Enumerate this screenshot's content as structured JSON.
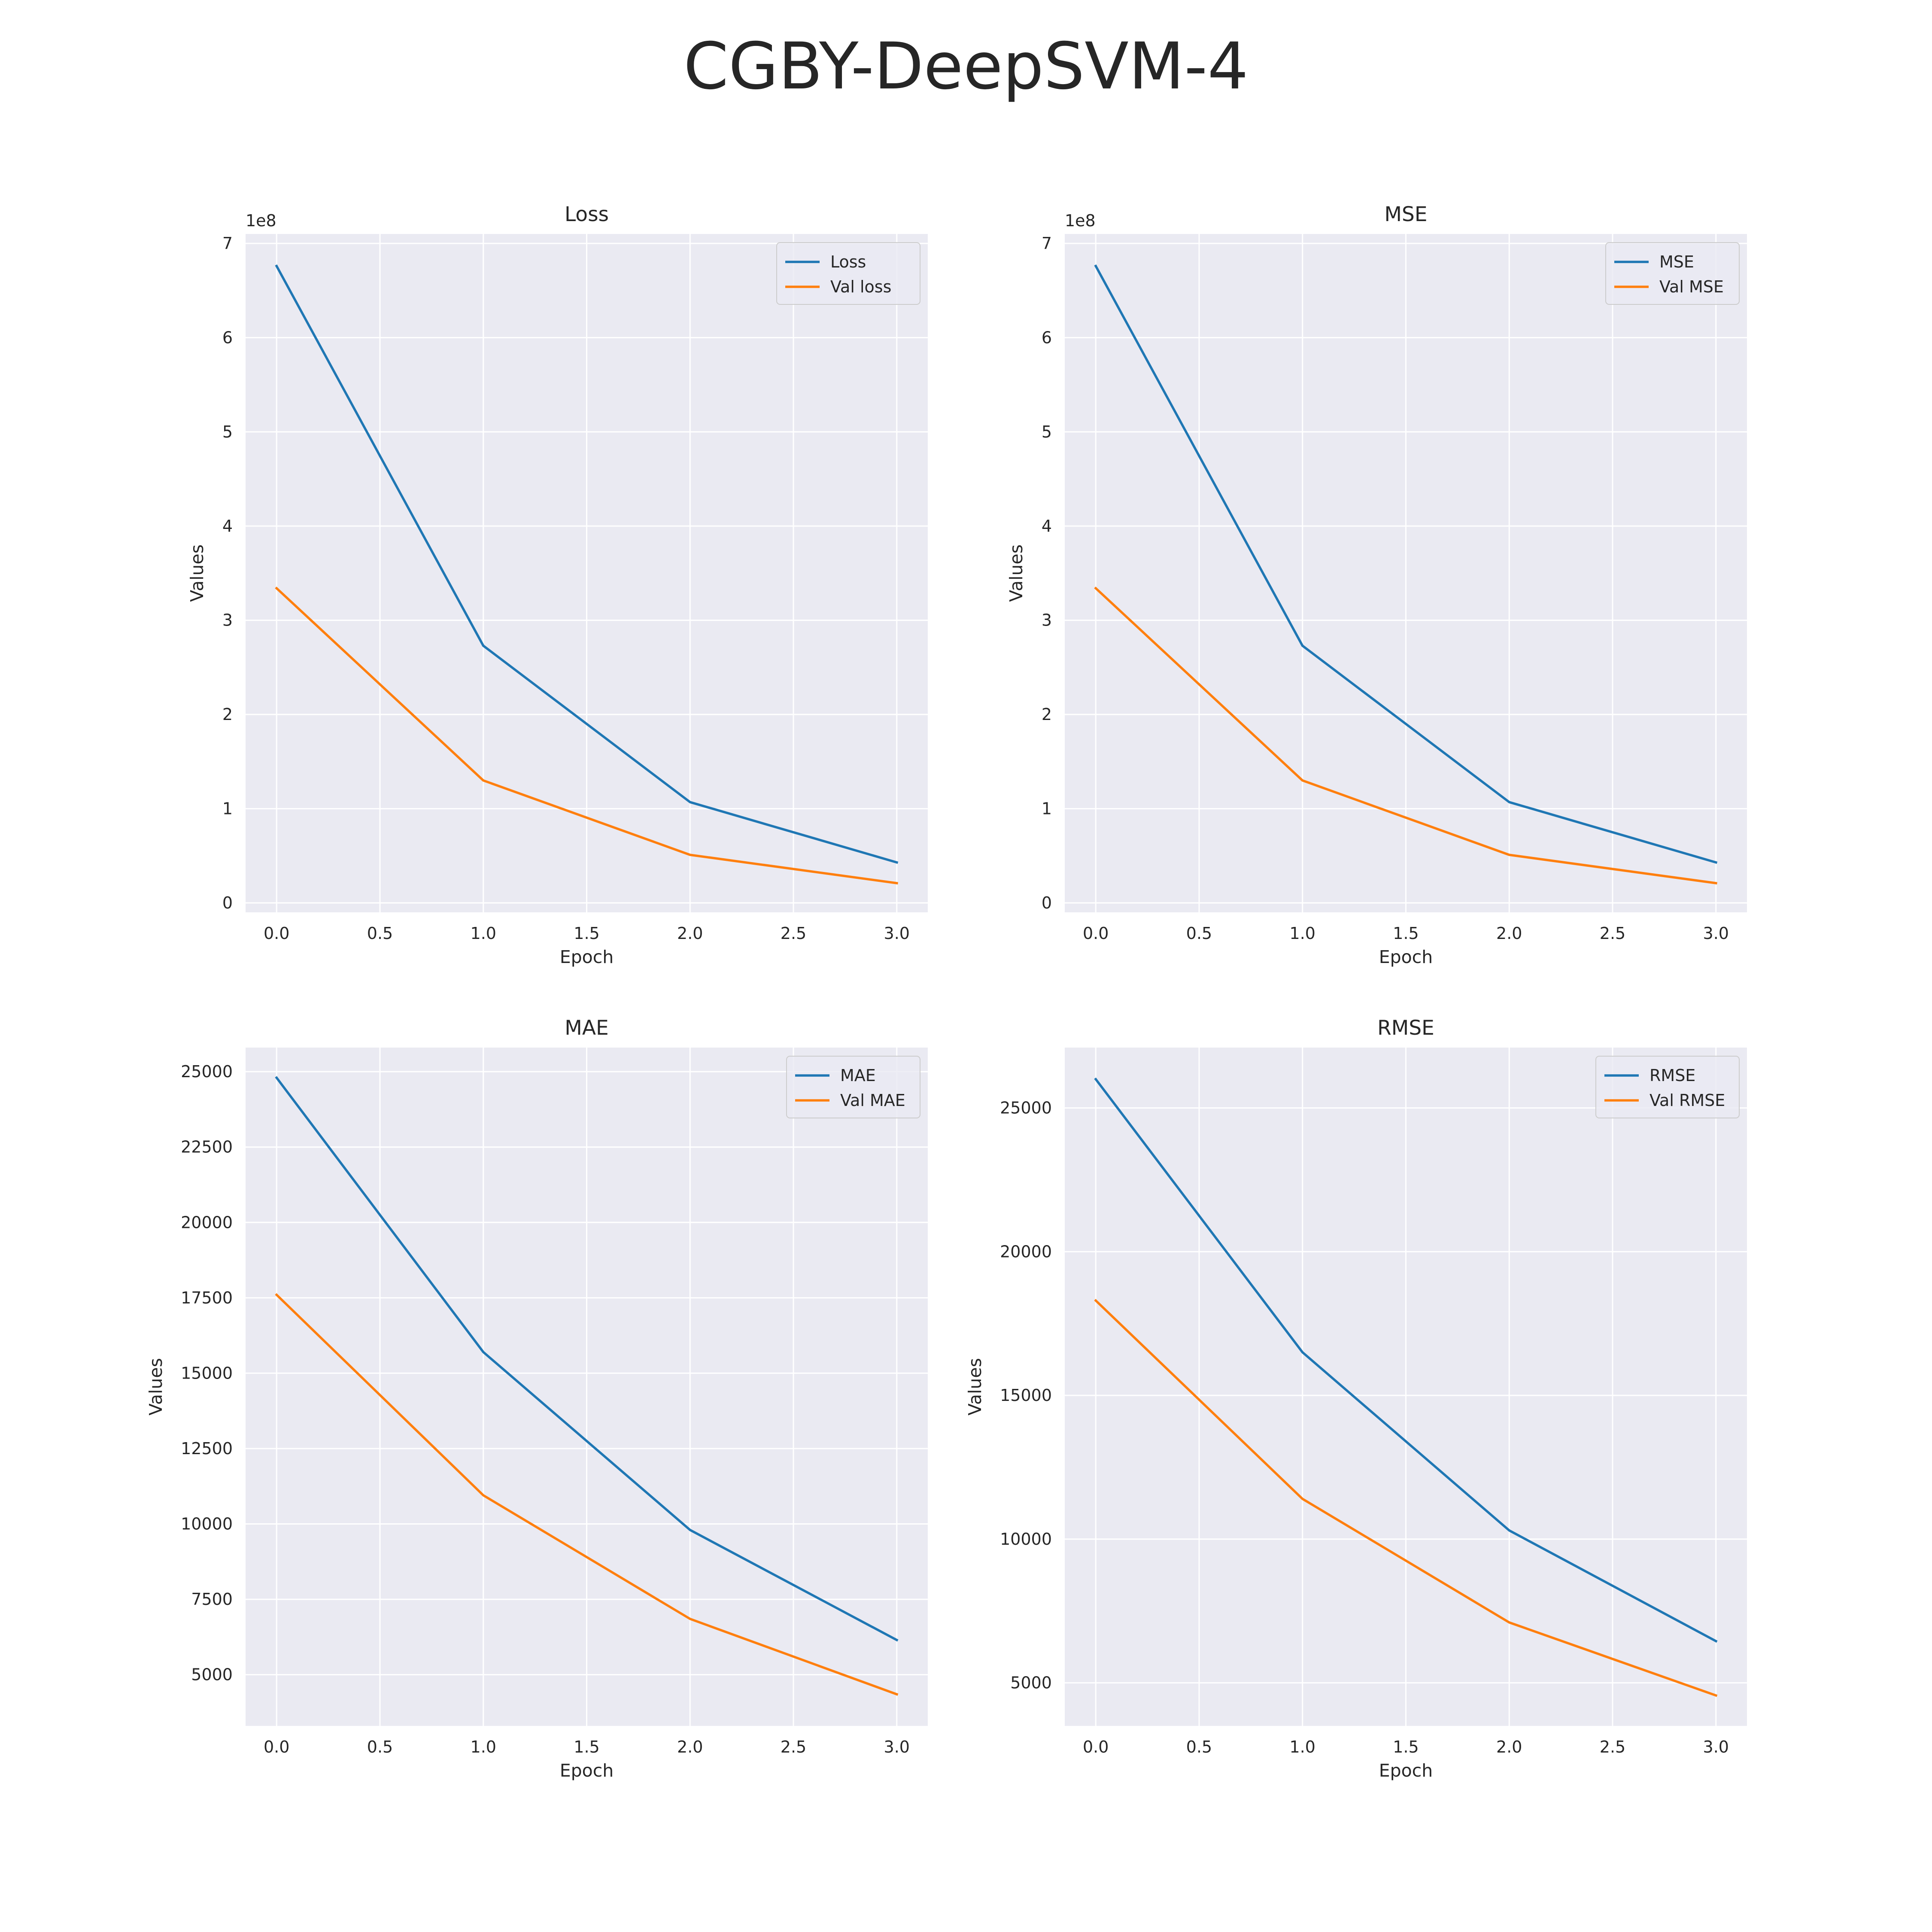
{
  "suptitle": "CGBY-DeepSVM-4",
  "colors": {
    "train": "#1f77b4",
    "val": "#ff7f0e",
    "panel_bg": "#eaeaf2",
    "grid": "#ffffff"
  },
  "chart_data": [
    {
      "type": "line",
      "title": "Loss",
      "xlabel": "Epoch",
      "ylabel": "Values",
      "offset_label": "1e8",
      "x": [
        0,
        1,
        2,
        3
      ],
      "xlim": [
        -0.15,
        3.15
      ],
      "ylim": [
        -0.1,
        7.1
      ],
      "xticks": [
        0,
        0.5,
        1,
        1.5,
        2,
        2.5,
        3
      ],
      "xtick_labels": [
        "0.0",
        "0.5",
        "1.0",
        "1.5",
        "2.0",
        "2.5",
        "3.0"
      ],
      "yticks": [
        0,
        1,
        2,
        3,
        4,
        5,
        6,
        7
      ],
      "ytick_labels": [
        "0",
        "1",
        "2",
        "3",
        "4",
        "5",
        "6",
        "7"
      ],
      "legend": "top-right",
      "grid": true,
      "series": [
        {
          "name": "Loss",
          "color": "#1f77b4",
          "values": [
            6.76,
            2.73,
            1.07,
            0.43
          ]
        },
        {
          "name": "Val loss",
          "color": "#ff7f0e",
          "values": [
            3.34,
            1.3,
            0.51,
            0.21
          ]
        }
      ]
    },
    {
      "type": "line",
      "title": "MSE",
      "xlabel": "Epoch",
      "ylabel": "Values",
      "offset_label": "1e8",
      "x": [
        0,
        1,
        2,
        3
      ],
      "xlim": [
        -0.15,
        3.15
      ],
      "ylim": [
        -0.1,
        7.1
      ],
      "xticks": [
        0,
        0.5,
        1,
        1.5,
        2,
        2.5,
        3
      ],
      "xtick_labels": [
        "0.0",
        "0.5",
        "1.0",
        "1.5",
        "2.0",
        "2.5",
        "3.0"
      ],
      "yticks": [
        0,
        1,
        2,
        3,
        4,
        5,
        6,
        7
      ],
      "ytick_labels": [
        "0",
        "1",
        "2",
        "3",
        "4",
        "5",
        "6",
        "7"
      ],
      "legend": "top-right",
      "grid": true,
      "series": [
        {
          "name": "MSE",
          "color": "#1f77b4",
          "values": [
            6.76,
            2.73,
            1.07,
            0.43
          ]
        },
        {
          "name": "Val MSE",
          "color": "#ff7f0e",
          "values": [
            3.34,
            1.3,
            0.51,
            0.21
          ]
        }
      ]
    },
    {
      "type": "line",
      "title": "MAE",
      "xlabel": "Epoch",
      "ylabel": "Values",
      "offset_label": "",
      "x": [
        0,
        1,
        2,
        3
      ],
      "xlim": [
        -0.15,
        3.15
      ],
      "ylim": [
        3300,
        25800
      ],
      "xticks": [
        0,
        0.5,
        1,
        1.5,
        2,
        2.5,
        3
      ],
      "xtick_labels": [
        "0.0",
        "0.5",
        "1.0",
        "1.5",
        "2.0",
        "2.5",
        "3.0"
      ],
      "yticks": [
        5000,
        7500,
        10000,
        12500,
        15000,
        17500,
        20000,
        22500,
        25000
      ],
      "ytick_labels": [
        "5000",
        "7500",
        "10000",
        "12500",
        "15000",
        "17500",
        "20000",
        "22500",
        "25000"
      ],
      "legend": "top-right",
      "grid": true,
      "series": [
        {
          "name": "MAE",
          "color": "#1f77b4",
          "values": [
            24800,
            15700,
            9800,
            6150
          ]
        },
        {
          "name": "Val MAE",
          "color": "#ff7f0e",
          "values": [
            17600,
            10950,
            6850,
            4350
          ]
        }
      ]
    },
    {
      "type": "line",
      "title": "RMSE",
      "xlabel": "Epoch",
      "ylabel": "Values",
      "offset_label": "",
      "x": [
        0,
        1,
        2,
        3
      ],
      "xlim": [
        -0.15,
        3.15
      ],
      "ylim": [
        3500,
        27100
      ],
      "xticks": [
        0,
        0.5,
        1,
        1.5,
        2,
        2.5,
        3
      ],
      "xtick_labels": [
        "0.0",
        "0.5",
        "1.0",
        "1.5",
        "2.0",
        "2.5",
        "3.0"
      ],
      "yticks": [
        5000,
        10000,
        15000,
        20000,
        25000
      ],
      "ytick_labels": [
        "5000",
        "10000",
        "15000",
        "20000",
        "25000"
      ],
      "legend": "top-right",
      "grid": true,
      "series": [
        {
          "name": "RMSE",
          "color": "#1f77b4",
          "values": [
            26000,
            16500,
            10300,
            6450
          ]
        },
        {
          "name": "Val RMSE",
          "color": "#ff7f0e",
          "values": [
            18300,
            11400,
            7100,
            4560
          ]
        }
      ]
    }
  ]
}
